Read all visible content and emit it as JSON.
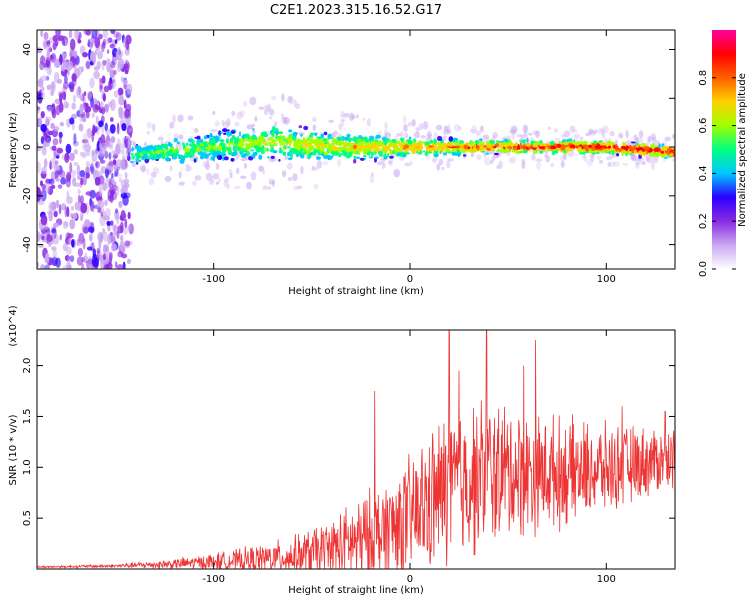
{
  "figure_title": "C2E1.2023.315.16.52.G17",
  "chart_data": [
    {
      "type": "heatmap",
      "title": "",
      "xlabel": "Height of straight line (km)",
      "ylabel": "Frequency (Hz)",
      "xlim": [
        -190,
        135
      ],
      "ylim": [
        -50,
        48
      ],
      "xticks": [
        -100,
        0,
        100
      ],
      "xtick_labels": [
        "-100",
        "0",
        "100"
      ],
      "yticks": [
        -40,
        -20,
        0,
        20,
        40
      ],
      "ytick_labels": [
        "-40",
        "-20",
        "0",
        "20",
        "40"
      ],
      "colorbar": {
        "label": "Normalized spectral amplitude",
        "range": [
          0,
          1
        ],
        "ticks": [
          0.0,
          0.2,
          0.4,
          0.6,
          0.8
        ],
        "tick_labels": [
          "0.0",
          "0.2",
          "0.4",
          "0.6",
          "0.8"
        ],
        "colormap": [
          "#ffffff",
          "#c9a8f0",
          "#8a2be2",
          "#2b00ff",
          "#00c8ff",
          "#00ff80",
          "#a0ff00",
          "#ffd000",
          "#ff6000",
          "#ff0000",
          "#ff00a0"
        ]
      },
      "features": {
        "noise_region_x": [
          -190,
          -142
        ],
        "signal_start_x": -142,
        "center_frequency": [
          {
            "x": -140,
            "f": -3
          },
          {
            "x": -100,
            "f": 0
          },
          {
            "x": -70,
            "f": 2
          },
          {
            "x": -40,
            "f": 0
          },
          {
            "x": 0,
            "f": 0
          },
          {
            "x": 50,
            "f": 0
          },
          {
            "x": 100,
            "f": 0
          },
          {
            "x": 135,
            "f": -2
          }
        ],
        "spread_half_width": [
          {
            "x": -140,
            "f": 5
          },
          {
            "x": -70,
            "f": 9
          },
          {
            "x": -20,
            "f": 6
          },
          {
            "x": 20,
            "f": 4
          },
          {
            "x": 135,
            "f": 3
          }
        ]
      }
    },
    {
      "type": "line",
      "title": "",
      "xlabel": "Height of straight line (km)",
      "ylabel": "SNR (10 * v/v)",
      "scale_label": "(x10^4)",
      "color": "#ee3333",
      "xlim": [
        -190,
        135
      ],
      "ylim": [
        0,
        2.35
      ],
      "xticks": [
        -100,
        0,
        100
      ],
      "xtick_labels": [
        "-100",
        "0",
        "100"
      ],
      "yticks": [
        0.5,
        1.0,
        1.5,
        2.0
      ],
      "ytick_labels": [
        "0.5",
        "1.0",
        "1.5",
        "2.0"
      ],
      "series": [
        {
          "name": "SNR",
          "envelope": [
            {
              "x": -190,
              "base": 0.02,
              "amp": 0.01
            },
            {
              "x": -150,
              "base": 0.03,
              "amp": 0.02
            },
            {
              "x": -120,
              "base": 0.05,
              "amp": 0.06
            },
            {
              "x": -90,
              "base": 0.08,
              "amp": 0.12
            },
            {
              "x": -60,
              "base": 0.12,
              "amp": 0.22
            },
            {
              "x": -40,
              "base": 0.2,
              "amp": 0.35
            },
            {
              "x": -20,
              "base": 0.3,
              "amp": 0.55
            },
            {
              "x": 0,
              "base": 0.5,
              "amp": 0.7
            },
            {
              "x": 20,
              "base": 0.8,
              "amp": 0.9
            },
            {
              "x": 40,
              "base": 0.95,
              "amp": 0.85
            },
            {
              "x": 60,
              "base": 0.95,
              "amp": 0.7
            },
            {
              "x": 80,
              "base": 0.95,
              "amp": 0.6
            },
            {
              "x": 100,
              "base": 0.98,
              "amp": 0.5
            },
            {
              "x": 120,
              "base": 1.05,
              "amp": 0.4
            },
            {
              "x": 135,
              "base": 1.1,
              "amp": 0.35
            }
          ],
          "peaks": [
            {
              "x": -18,
              "y": 1.75
            },
            {
              "x": 20,
              "y": 2.35
            },
            {
              "x": 39,
              "y": 2.35
            },
            {
              "x": 25,
              "y": 1.95
            },
            {
              "x": 58,
              "y": 2.0
            },
            {
              "x": 64,
              "y": 2.25
            },
            {
              "x": 108,
              "y": 1.6
            },
            {
              "x": 130,
              "y": 1.55
            }
          ]
        }
      ]
    }
  ]
}
